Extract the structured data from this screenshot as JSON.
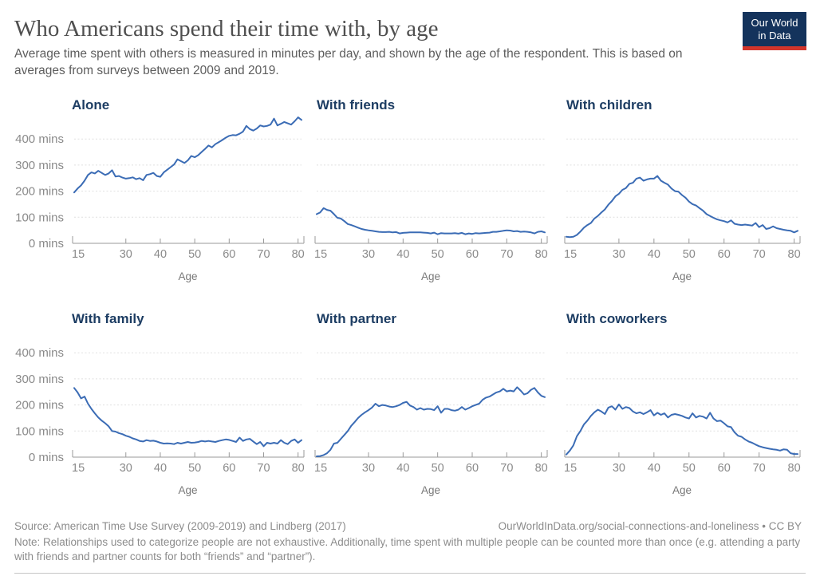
{
  "header": {
    "title": "Who Americans spend their time with, by age",
    "subtitle": "Average time spent with others is measured in minutes per day, and shown by the age of the respondent. This is based on averages from surveys between 2009 and 2019.",
    "logo": {
      "line1": "Our World",
      "line2": "in Data"
    }
  },
  "colors": {
    "line": "#3b6cb5",
    "chart_title": "#1d3d63",
    "axis": "#9a9a9a",
    "grid": "#e0e0e0",
    "tick_label": "#8a8a8a",
    "logo_bg": "#14335c",
    "logo_accent": "#d2352b"
  },
  "footer": {
    "source": "Source: American Time Use Survey (2009-2019) and Lindberg (2017)",
    "link": "OurWorldInData.org/social-connections-and-loneliness • CC BY",
    "note": "Note: Relationships used to categorize people are not exhaustive. Additionally, time spent with multiple people can be counted more than once (e.g. attending a party with friends and partner counts for both “friends” and “partner”)."
  },
  "chart_data": [
    {
      "type": "line",
      "title": "Alone",
      "xlabel": "Age",
      "unit": "mins",
      "x_start": 15,
      "x_end": 81,
      "xticks": [
        15,
        30,
        40,
        50,
        60,
        70,
        80
      ],
      "yticks": [
        0,
        100,
        200,
        300,
        400
      ],
      "ylim": [
        0,
        500
      ],
      "y_axis_labels": true,
      "grid": true,
      "legend": "none",
      "values": [
        195,
        210,
        222,
        240,
        262,
        272,
        268,
        278,
        270,
        262,
        268,
        280,
        256,
        258,
        252,
        248,
        250,
        253,
        246,
        250,
        242,
        262,
        265,
        270,
        258,
        255,
        272,
        282,
        292,
        302,
        322,
        315,
        308,
        318,
        335,
        330,
        338,
        350,
        362,
        375,
        368,
        380,
        388,
        396,
        405,
        412,
        415,
        414,
        420,
        428,
        450,
        438,
        432,
        440,
        452,
        448,
        450,
        455,
        478,
        452,
        458,
        465,
        460,
        455,
        468,
        483,
        473
      ]
    },
    {
      "type": "line",
      "title": "With friends",
      "xlabel": "Age",
      "unit": "mins",
      "x_start": 15,
      "x_end": 81,
      "xticks": [
        15,
        30,
        40,
        50,
        60,
        70,
        80
      ],
      "yticks": [
        0,
        100,
        200,
        300,
        400
      ],
      "ylim": [
        0,
        500
      ],
      "y_axis_labels": false,
      "grid": true,
      "legend": "none",
      "values": [
        112,
        118,
        135,
        128,
        125,
        112,
        98,
        95,
        85,
        74,
        70,
        65,
        60,
        55,
        52,
        50,
        48,
        46,
        44,
        43,
        43,
        44,
        42,
        43,
        38,
        40,
        41,
        42,
        42,
        42,
        42,
        41,
        40,
        38,
        41,
        35,
        39,
        38,
        38,
        38,
        39,
        37,
        40,
        35,
        38,
        36,
        39,
        38,
        39,
        40,
        41,
        44,
        44,
        46,
        48,
        50,
        49,
        46,
        47,
        44,
        45,
        44,
        42,
        38,
        44,
        46,
        42
      ]
    },
    {
      "type": "line",
      "title": "With children",
      "xlabel": "Age",
      "unit": "mins",
      "x_start": 15,
      "x_end": 81,
      "xticks": [
        15,
        30,
        40,
        50,
        60,
        70,
        80
      ],
      "yticks": [
        0,
        100,
        200,
        300,
        400
      ],
      "ylim": [
        0,
        500
      ],
      "y_axis_labels": false,
      "grid": true,
      "legend": "none",
      "values": [
        25,
        24,
        25,
        32,
        45,
        60,
        70,
        78,
        95,
        105,
        118,
        130,
        148,
        162,
        180,
        190,
        205,
        212,
        228,
        232,
        248,
        252,
        240,
        245,
        248,
        248,
        258,
        240,
        232,
        225,
        210,
        200,
        198,
        185,
        175,
        160,
        150,
        145,
        135,
        125,
        112,
        105,
        98,
        92,
        88,
        85,
        80,
        88,
        75,
        72,
        70,
        72,
        70,
        68,
        78,
        62,
        70,
        55,
        58,
        65,
        58,
        55,
        52,
        50,
        48,
        42,
        48
      ]
    },
    {
      "type": "line",
      "title": "With family",
      "xlabel": "Age",
      "unit": "mins",
      "x_start": 15,
      "x_end": 81,
      "xticks": [
        15,
        30,
        40,
        50,
        60,
        70,
        80
      ],
      "yticks": [
        0,
        100,
        200,
        300,
        400
      ],
      "ylim": [
        0,
        500
      ],
      "y_axis_labels": true,
      "grid": true,
      "legend": "none",
      "values": [
        265,
        248,
        225,
        232,
        205,
        185,
        168,
        152,
        140,
        130,
        118,
        100,
        98,
        92,
        88,
        82,
        78,
        72,
        68,
        62,
        60,
        65,
        62,
        63,
        60,
        55,
        52,
        53,
        52,
        50,
        55,
        52,
        55,
        58,
        55,
        56,
        58,
        62,
        60,
        62,
        60,
        58,
        62,
        65,
        68,
        66,
        62,
        58,
        75,
        62,
        68,
        70,
        60,
        50,
        58,
        42,
        55,
        52,
        55,
        52,
        65,
        55,
        50,
        62,
        68,
        55,
        65
      ]
    },
    {
      "type": "line",
      "title": "With partner",
      "xlabel": "Age",
      "unit": "mins",
      "x_start": 15,
      "x_end": 81,
      "xticks": [
        15,
        30,
        40,
        50,
        60,
        70,
        80
      ],
      "yticks": [
        0,
        100,
        200,
        300,
        400
      ],
      "ylim": [
        0,
        500
      ],
      "y_axis_labels": false,
      "grid": true,
      "legend": "none",
      "values": [
        3,
        4,
        8,
        15,
        28,
        52,
        55,
        70,
        85,
        100,
        120,
        135,
        150,
        162,
        172,
        180,
        190,
        205,
        195,
        200,
        198,
        194,
        192,
        195,
        200,
        208,
        212,
        198,
        192,
        182,
        188,
        182,
        185,
        184,
        180,
        195,
        170,
        185,
        185,
        180,
        178,
        182,
        192,
        182,
        188,
        195,
        200,
        205,
        220,
        228,
        232,
        240,
        248,
        252,
        262,
        252,
        255,
        252,
        268,
        255,
        240,
        245,
        258,
        265,
        248,
        235,
        230
      ]
    },
    {
      "type": "line",
      "title": "With coworkers",
      "xlabel": "Age",
      "unit": "mins",
      "x_start": 15,
      "x_end": 81,
      "xticks": [
        15,
        30,
        40,
        50,
        60,
        70,
        80
      ],
      "yticks": [
        0,
        100,
        200,
        300,
        400
      ],
      "ylim": [
        0,
        500
      ],
      "y_axis_labels": false,
      "grid": true,
      "legend": "none",
      "values": [
        10,
        25,
        45,
        80,
        100,
        125,
        140,
        158,
        172,
        182,
        175,
        165,
        190,
        195,
        182,
        202,
        185,
        192,
        188,
        175,
        168,
        172,
        165,
        172,
        180,
        160,
        170,
        162,
        168,
        152,
        162,
        165,
        162,
        158,
        152,
        148,
        168,
        152,
        158,
        155,
        148,
        170,
        148,
        138,
        140,
        130,
        118,
        115,
        95,
        82,
        78,
        68,
        60,
        55,
        48,
        42,
        38,
        35,
        32,
        30,
        28,
        25,
        30,
        28,
        15,
        12,
        12
      ]
    }
  ]
}
